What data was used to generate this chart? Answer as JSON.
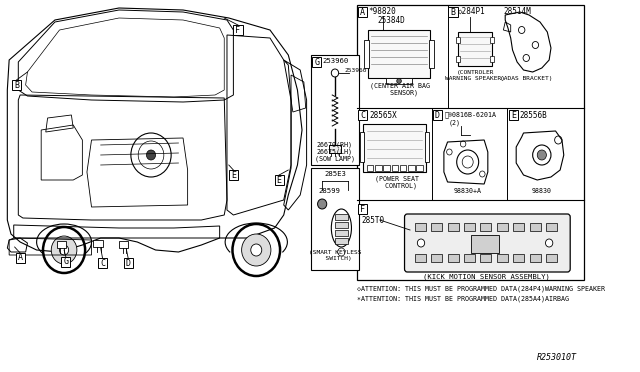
{
  "bg_color": "#ffffff",
  "parts": {
    "A_part1": "*98820",
    "A_part2": "25384D",
    "A_desc": "(CENTER AIR BAG\n  SENSOR)",
    "B_label_part1": "◇284P1",
    "B_part2": "28514M",
    "B_desc1": "(CONTROLER\nWARNING SPEAKER)",
    "B_desc2": "(ADAS BRACKET)",
    "C_part": "28565X",
    "C_desc": "(POWER SEAT\n  CONTROL)",
    "D_part1": "Ⓢ®0816B-6201A",
    "D_part2": "(2)",
    "D_part3": "98830+A",
    "E_part1": "28556B",
    "E_part2": "98830",
    "G_part": "253960",
    "G_wire": "26670(RH)\n26675(LH)",
    "G_desc": "(SOW LAMP)",
    "KEY_part1": "285E3",
    "KEY_part2": "28599",
    "KEY_desc": "(SMART KEYLESS\n  SWITCH)",
    "F_part": "285T0",
    "F_desc": "(KICK MOTION SENSOR ASSEMBLY)",
    "note1": "◇ATTENTION: THIS MUST BE PROGRAMMED DATA(284P4)WARNING SPEAKER",
    "note2": "∗ATTENTION: THIS MUST BE PROGRAMMED DATA(285A4)AIRBAG",
    "ref": "R253010T"
  }
}
